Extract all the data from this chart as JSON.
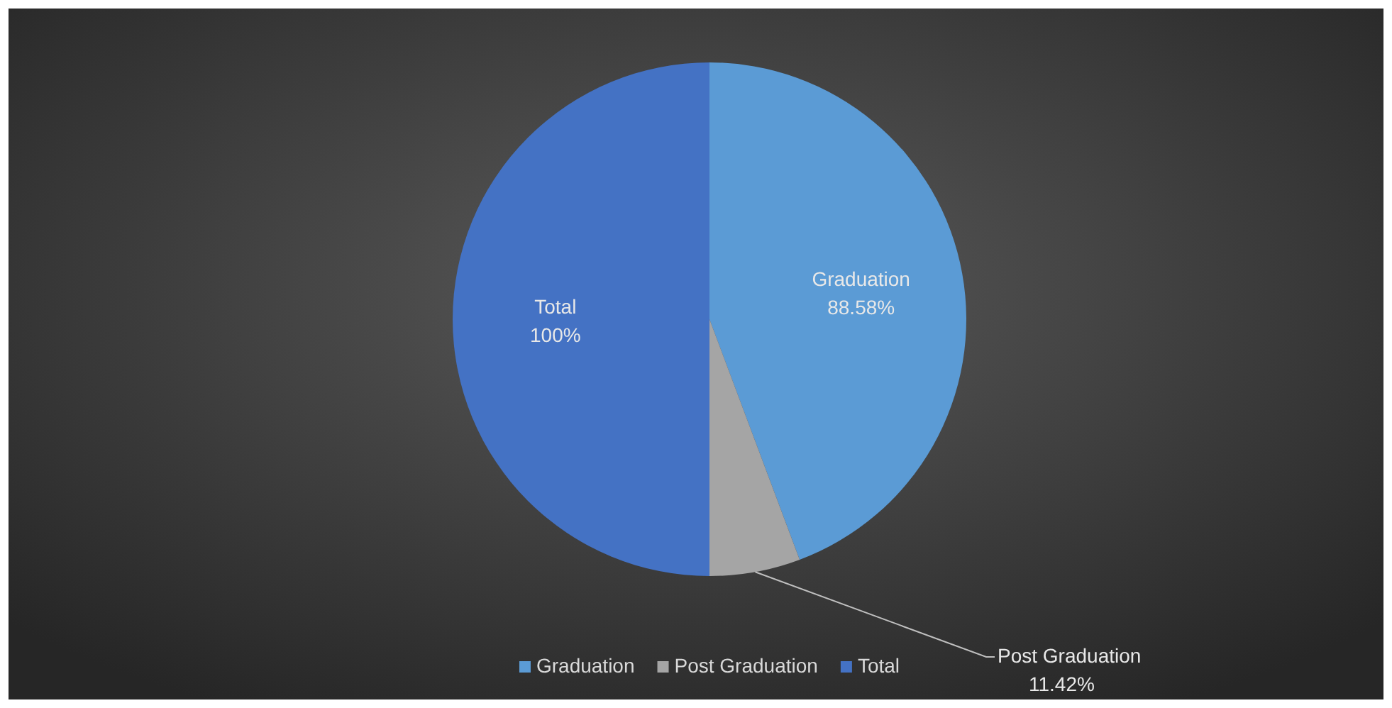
{
  "chart_data": {
    "type": "pie",
    "categories": [
      "Graduation",
      "Post Graduation",
      "Total"
    ],
    "values": [
      88.58,
      11.42,
      100
    ],
    "colors": [
      "#5b9bd5",
      "#a5a5a5",
      "#4472c4"
    ],
    "value_labels": [
      "88.58%",
      "11.42%",
      "100%"
    ],
    "legend": "bottom"
  }
}
